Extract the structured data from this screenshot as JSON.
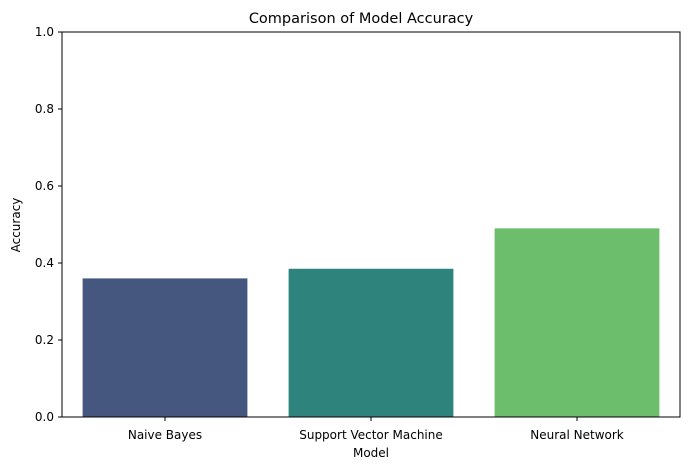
{
  "chart_data": {
    "type": "bar",
    "title": "Comparison of Model Accuracy",
    "xlabel": "Model",
    "ylabel": "Accuracy",
    "categories": [
      "Naive Bayes",
      "Support Vector Machine",
      "Neural Network"
    ],
    "values": [
      0.36,
      0.385,
      0.49
    ],
    "colors": [
      "#46577f",
      "#2e847d",
      "#6cbd6c"
    ],
    "ylim": [
      0,
      1
    ],
    "yticks": [
      0.0,
      0.2,
      0.4,
      0.6,
      0.8,
      1.0
    ],
    "ytick_labels": [
      "0.0",
      "0.2",
      "0.4",
      "0.6",
      "0.8",
      "1.0"
    ],
    "grid": false,
    "legend": "none"
  }
}
